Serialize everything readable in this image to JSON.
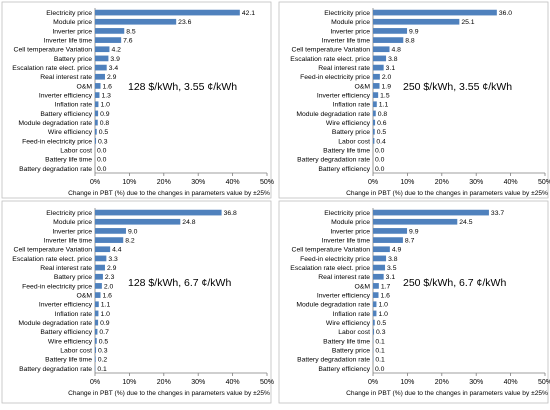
{
  "chart_data": [
    {
      "type": "bar",
      "orientation": "horizontal",
      "annotation": "128 $/kWh, 3.55 ¢/kWh",
      "xlabel": "Change in PBT (%) due to the changes in parameters value  by ±25%",
      "xlim": [
        0,
        50
      ],
      "xticks": [
        "0%",
        "10%",
        "20%",
        "30%",
        "40%",
        "50%"
      ],
      "categories": [
        "Electricity price",
        "Module price",
        "Inverter price",
        "Inverter life time",
        "Cell temperature Variation",
        "Battery price",
        "Escalation rate elect. price",
        "Real interest rate",
        "O&M",
        "Inverter efficiency",
        "Inflation rate",
        "Battery efficiency",
        "Module degradation rate",
        "Wire efficiency",
        "Feed-in electricity price",
        "Labor cost",
        "Battery life time",
        "Battery degradation rate"
      ],
      "values": [
        42.1,
        23.6,
        8.5,
        7.6,
        4.2,
        3.9,
        3.4,
        2.9,
        1.6,
        1.3,
        1.0,
        0.9,
        0.8,
        0.5,
        0.3,
        0.0,
        0.0,
        0.0
      ],
      "value_labels": [
        "42.1",
        "23.6",
        "8.5",
        "7.6",
        "4.2",
        "3.9",
        "3.4",
        "2.9",
        "1.6",
        "1.3",
        "1.0",
        "0.9",
        "0.8",
        "0.5",
        "0.3",
        "0.0",
        "0.0",
        "0.0"
      ]
    },
    {
      "type": "bar",
      "orientation": "horizontal",
      "annotation": "250 $/kWh, 3.55 ¢/kWh",
      "xlabel": "Change in PBT (%) due to the changes in parameters value  by ±25%",
      "xlim": [
        0,
        50
      ],
      "xticks": [
        "0%",
        "10%",
        "20%",
        "30%",
        "40%",
        "50%"
      ],
      "categories": [
        "Electricity price",
        "Module price",
        "Inverter price",
        "Inverter life time",
        "Cell temperature Variation",
        "Escalation rate elect. price",
        "Real interest rate",
        "Feed-in electricity price",
        "O&M",
        "Inverter efficiency",
        "Inflation rate",
        "Module degradation rate",
        "Wire efficiency",
        "Battery price",
        "Labor cost",
        "Battery life time",
        "Battery degradation rate",
        "Battery efficiency"
      ],
      "values": [
        36.0,
        25.1,
        9.9,
        8.8,
        4.8,
        3.8,
        3.1,
        2.0,
        1.9,
        1.5,
        1.1,
        0.8,
        0.6,
        0.5,
        0.4,
        0.0,
        0.0,
        0.0
      ],
      "value_labels": [
        "36.0",
        "25.1",
        "9.9",
        "8.8",
        "4.8",
        "3.8",
        "3.1",
        "2.0",
        "1.9",
        "1.5",
        "1.1",
        "0.8",
        "0.6",
        "0.5",
        "0.4",
        "0.0",
        "0.0",
        "0.0"
      ]
    },
    {
      "type": "bar",
      "orientation": "horizontal",
      "annotation": "128 $/kWh, 6.7 ¢/kWh",
      "xlabel": "Change in PBT (%) due to the changes in parameters value  by ±25%",
      "xlim": [
        0,
        50
      ],
      "xticks": [
        "0%",
        "10%",
        "20%",
        "30%",
        "40%",
        "50%"
      ],
      "categories": [
        "Electricity price",
        "Module price",
        "Inverter price",
        "Inverter life time",
        "Cell temperature Variation",
        "Escalation rate elect. price",
        "Real interest rate",
        "Battery price",
        "Feed-in electricity price",
        "O&M",
        "Inverter efficiency",
        "Inflation rate",
        "Module degradation rate",
        "Battery efficiency",
        "Wire efficiency",
        "Labor cost",
        "Battery life time",
        "Battery degradation rate"
      ],
      "values": [
        36.8,
        24.8,
        9.0,
        8.2,
        4.4,
        3.3,
        2.9,
        2.3,
        2.0,
        1.6,
        1.1,
        1.0,
        0.9,
        0.7,
        0.5,
        0.3,
        0.2,
        0.1
      ],
      "value_labels": [
        "36.8",
        "24.8",
        "9.0",
        "8.2",
        "4.4",
        "3.3",
        "2.9",
        "2.3",
        "2.0",
        "1.6",
        "1.1",
        "1.0",
        "0.9",
        "0.7",
        "0.5",
        "0.3",
        "0.2",
        "0.1"
      ]
    },
    {
      "type": "bar",
      "orientation": "horizontal",
      "annotation": "250 $/kWh, 6.7 ¢/kWh",
      "xlabel": "Change in PBT (%) due to the changes in parameters value  by ±25%",
      "xlim": [
        0,
        50
      ],
      "xticks": [
        "0%",
        "10%",
        "20%",
        "30%",
        "40%",
        "50%"
      ],
      "categories": [
        "Electricity price",
        "Module price",
        "Inverter price",
        "Inverter life time",
        "Cell temperature Variation",
        "Feed-in electricity price",
        "Escalation rate elect. price",
        "Real interest rate",
        "O&M",
        "Inverter efficiency",
        "Module degradation rate",
        "Inflation rate",
        "Wire efficiency",
        "Labor cost",
        "Battery life time",
        "Battery price",
        "Battery degradation rate",
        "Battery efficiency"
      ],
      "values": [
        33.7,
        24.5,
        9.9,
        8.7,
        4.9,
        3.8,
        3.5,
        3.1,
        1.7,
        1.6,
        1.0,
        1.0,
        0.5,
        0.3,
        0.1,
        0.1,
        0.1,
        0.0
      ],
      "value_labels": [
        "33.7",
        "24.5",
        "9.9",
        "8.7",
        "4.9",
        "3.8",
        "3.5",
        "3.1",
        "1.7",
        "1.6",
        "1.0",
        "1.0",
        "0.5",
        "0.3",
        "0.1",
        "0.1",
        "0.1",
        "0.0"
      ]
    }
  ],
  "style": {
    "bar_color": "#4f81bd",
    "axis_color": "#7f7f7f",
    "text_color": "#000000",
    "border_color": "#bfbfbf"
  }
}
